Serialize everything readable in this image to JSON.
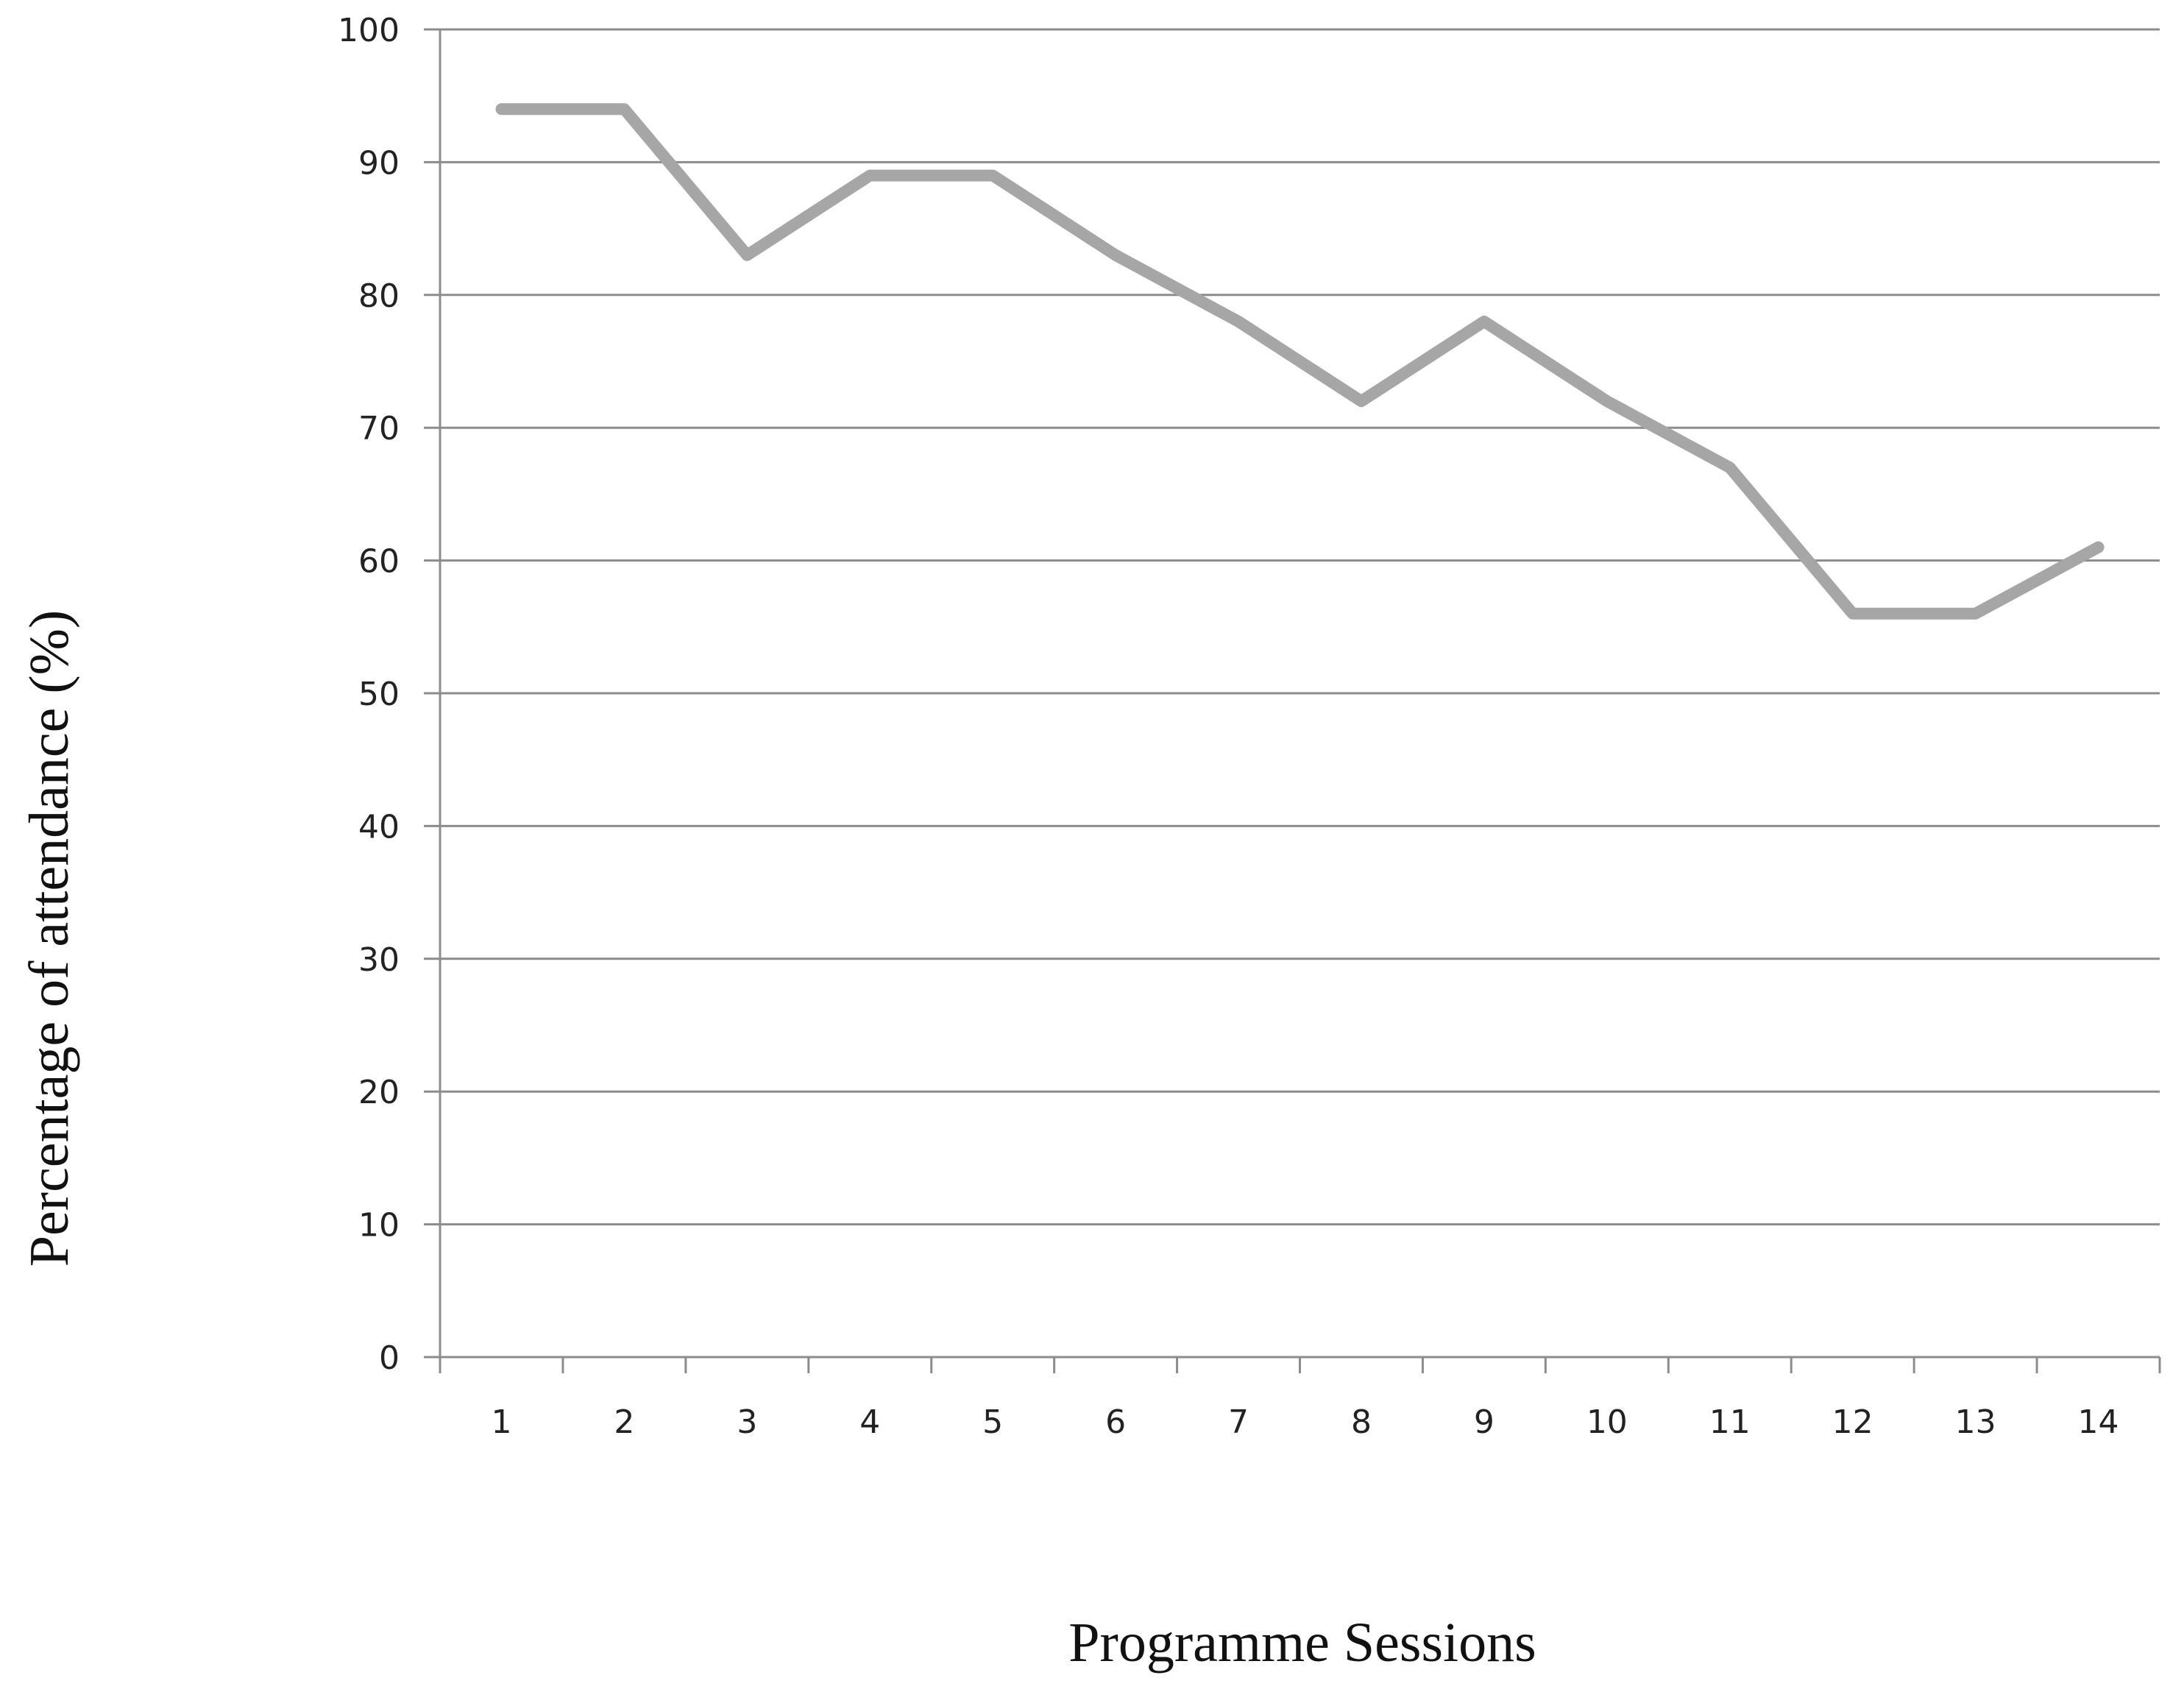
{
  "chart_data": {
    "type": "line",
    "title": "",
    "xlabel": "Programme Sessions",
    "ylabel": "Percentage of attendance (%)",
    "categories": [
      "1",
      "2",
      "3",
      "4",
      "5",
      "6",
      "7",
      "8",
      "9",
      "10",
      "11",
      "12",
      "13",
      "14"
    ],
    "series": [
      {
        "values": [
          94,
          94,
          83,
          89,
          89,
          83,
          78,
          72,
          78,
          72,
          67,
          56,
          56,
          61
        ]
      }
    ],
    "ylim": [
      0,
      100
    ],
    "yticks": [
      "0",
      "10",
      "20",
      "30",
      "40",
      "50",
      "60",
      "70",
      "80",
      "90",
      "100"
    ],
    "grid": true,
    "legend": "none",
    "colors": {
      "line": "#a6a6a6",
      "grid": "#8c8c8c",
      "axis": "#8c8c8c"
    }
  }
}
